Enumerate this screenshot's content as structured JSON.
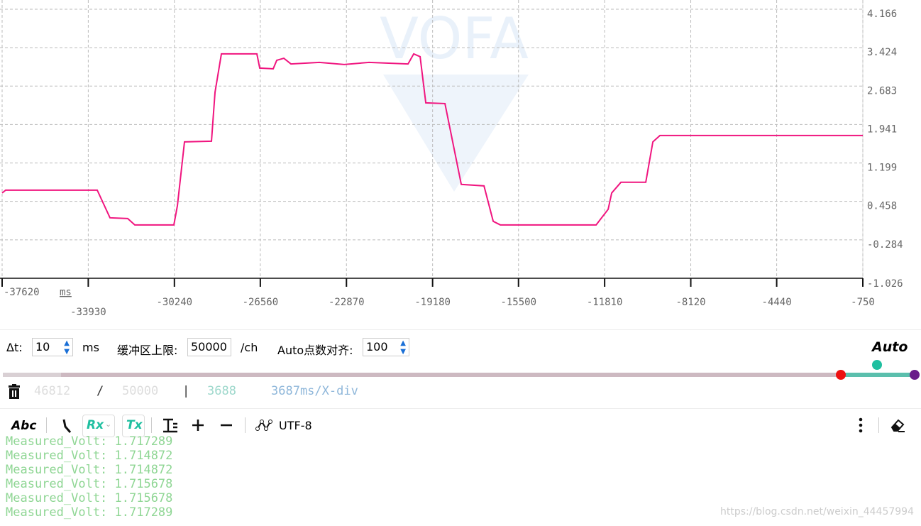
{
  "chart_data": {
    "type": "line",
    "watermark": "VOFA",
    "x_unit": "ms",
    "xlim": [
      -37620,
      -750
    ],
    "xticks": [
      -37620,
      -33930,
      -30240,
      -26560,
      -22870,
      -19180,
      -15500,
      -11810,
      -8120,
      -4440,
      -750
    ],
    "ylim": [
      -1.026,
      4.166
    ],
    "yticks": [
      4.166,
      3.424,
      2.683,
      1.941,
      1.199,
      0.458,
      -0.284,
      -1.026
    ],
    "grid": true,
    "series": [
      {
        "color": "#f0157f",
        "x": [
          -37620,
          -37468,
          -33546,
          -33000,
          -32240,
          -31936,
          -30263,
          -30112,
          -29808,
          -28652,
          -28500,
          -28227,
          -26707,
          -26585,
          -26008,
          -25856,
          -25552,
          -25248,
          -24032,
          -22968,
          -21904,
          -20232,
          -19988,
          -19714,
          -19471,
          -18650,
          -17951,
          -16978,
          -16583,
          -16279,
          -12175,
          -11659,
          -11507,
          -11112,
          -10048,
          -9744,
          -9440,
          -750
        ],
        "values": [
          0.62,
          0.675,
          0.675,
          0.141,
          0.127,
          0.004,
          0.004,
          0.374,
          1.606,
          1.62,
          2.564,
          3.304,
          3.304,
          3.03,
          3.016,
          3.18,
          3.22,
          3.11,
          3.14,
          3.1,
          3.14,
          3.11,
          3.304,
          3.25,
          2.359,
          2.345,
          0.785,
          0.757,
          0.073,
          0.004,
          0.004,
          0.305,
          0.62,
          0.826,
          0.826,
          1.606,
          1.729,
          1.729
        ]
      }
    ]
  },
  "controls": {
    "dt_label": "Δt:",
    "dt_value": 10,
    "dt_unit": "ms",
    "buffer_label": "缓冲区上限:",
    "buffer_value": 50000,
    "buffer_unit": "/ch",
    "align_label": "Auto点数对齐:",
    "align_value": 100,
    "auto": "Auto"
  },
  "status": {
    "count": 46812,
    "slash": "/",
    "limit": 50000,
    "bar": "|",
    "points": 3688,
    "xdiv": "3687ms/X-div"
  },
  "toolbar": {
    "abc": "Abc",
    "rx": "Rx",
    "tx": "Tx",
    "encoding": "UTF-8"
  },
  "log": [
    "Measured_Volt: 1.717289",
    "Measured_Volt: 1.714872",
    "Measured_Volt: 1.714872",
    "Measured_Volt: 1.715678",
    "Measured_Volt: 1.715678",
    "Measured_Volt: 1.717289"
  ],
  "footer": {
    "watermark": "https://blog.csdn.net/weixin_44457994"
  }
}
